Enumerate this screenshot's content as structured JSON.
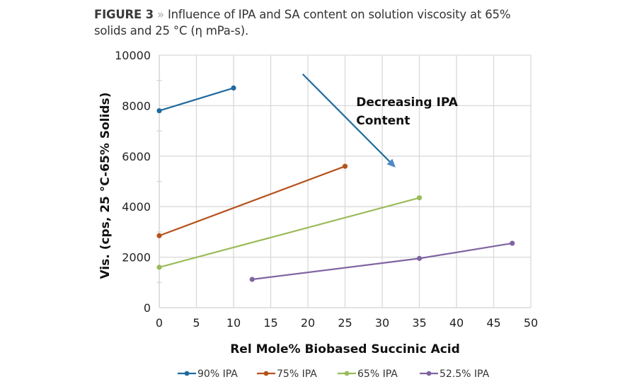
{
  "caption": {
    "figure_label": "FIGURE 3",
    "separator": "»",
    "text_line1": " Influence of IPA and SA content on solution viscosity at 65%",
    "text_line2": "solids and 25 °C (η mPa-s)."
  },
  "chart_data": {
    "type": "line",
    "title": "Influence of IPA and SA content on solution viscosity at 65% solids and 25 °C (η mPa-s).",
    "xlabel": "Rel Mole% Biobased Succinic Acid",
    "ylabel": "Vis. (cps, 25 °C-65% Solids)",
    "xlim": [
      0,
      50
    ],
    "ylim": [
      0,
      10000
    ],
    "xticks": [
      0,
      5,
      10,
      15,
      20,
      25,
      30,
      35,
      40,
      45,
      50
    ],
    "yticks": [
      0,
      2000,
      4000,
      6000,
      8000,
      10000
    ],
    "y_minor_ticks": [
      1000,
      3000,
      5000,
      7000,
      9000
    ],
    "grid": true,
    "legend_position": "bottom",
    "series": [
      {
        "name": "90% IPA",
        "color": "#1f6aa0",
        "points": [
          [
            0,
            7800
          ],
          [
            10,
            8700
          ]
        ]
      },
      {
        "name": "75% IPA",
        "color": "#b5521b",
        "points": [
          [
            0,
            2850
          ],
          [
            25,
            5600
          ]
        ]
      },
      {
        "name": "65% IPA",
        "color": "#9bbb59",
        "points": [
          [
            0,
            1600
          ],
          [
            35,
            4350
          ]
        ]
      },
      {
        "name": "52.5% IPA",
        "color": "#8064a2",
        "points": [
          [
            12.5,
            1120
          ],
          [
            35,
            1950
          ],
          [
            47.5,
            2550
          ]
        ]
      }
    ],
    "annotations": [
      {
        "text_line1": "Decreasing IPA",
        "text_line2": "Content",
        "x": 26.5,
        "y": 8150
      },
      {
        "type": "arrow",
        "from": [
          19.3,
          9250
        ],
        "to": [
          31.8,
          5550
        ],
        "color": "#1f6aa0"
      }
    ]
  }
}
